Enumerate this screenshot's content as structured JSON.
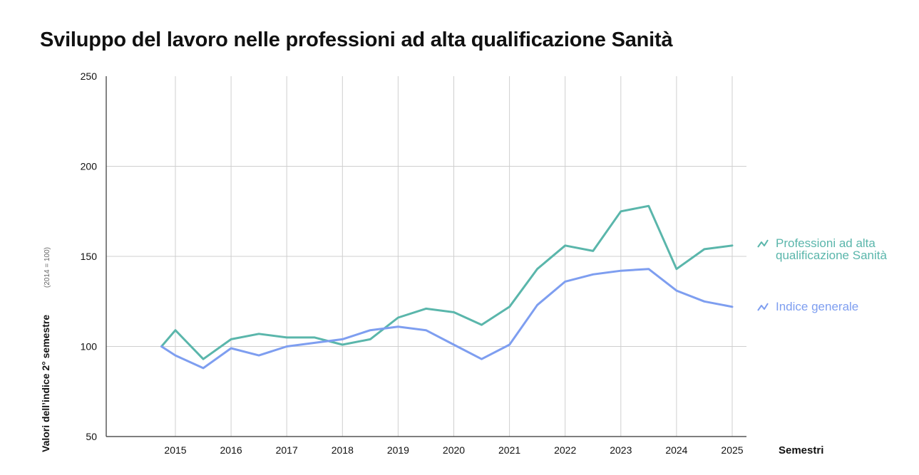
{
  "title": "Sviluppo del lavoro nelle professioni ad alta qualificazione Sanità",
  "chart_data": {
    "type": "line",
    "title": "Sviluppo del lavoro nelle professioni ad alta qualificazione Sanità",
    "xlabel": "Semestri",
    "ylabel": "Valori dell’indice 2° semestre",
    "ylabel_note": "(2014 = 100)",
    "ylim": [
      50,
      250
    ],
    "yticks": [
      "50",
      "100",
      "150",
      "200",
      "250"
    ],
    "ytick_values": [
      50,
      100,
      150,
      200,
      250
    ],
    "xlim": [
      2014.25,
      2025
    ],
    "xticks": [
      "2015",
      "2016",
      "2017",
      "2018",
      "2019",
      "2020",
      "2021",
      "2022",
      "2023",
      "2024",
      "2025"
    ],
    "xtick_values": [
      2015,
      2016,
      2017,
      2018,
      2019,
      2020,
      2021,
      2022,
      2023,
      2024,
      2025
    ],
    "grid": true,
    "legend": "right",
    "x": [
      2014.75,
      2015,
      2015.5,
      2016,
      2016.5,
      2017,
      2017.5,
      2018,
      2018.5,
      2019,
      2019.5,
      2020,
      2020.5,
      2021,
      2021.5,
      2022,
      2022.5,
      2023,
      2023.5,
      2024,
      2024.5,
      2025
    ],
    "series": [
      {
        "name": "Professioni ad alta qualificazione Sanità",
        "legend_lines": [
          "Professioni ad alta",
          "qualificazione Sanità"
        ],
        "color": "#5ab6ab",
        "values": [
          100,
          109,
          93,
          104,
          107,
          105,
          105,
          101,
          104,
          116,
          121,
          119,
          112,
          122,
          143,
          156,
          153,
          175,
          178,
          143,
          154,
          156
        ]
      },
      {
        "name": "Indice generale",
        "legend_lines": [
          "Indice generale"
        ],
        "color": "#7e9ef0",
        "values": [
          100,
          95,
          88,
          99,
          95,
          100,
          102,
          104,
          109,
          111,
          109,
          101,
          93,
          101,
          123,
          136,
          140,
          142,
          143,
          131,
          125,
          122
        ]
      }
    ]
  }
}
